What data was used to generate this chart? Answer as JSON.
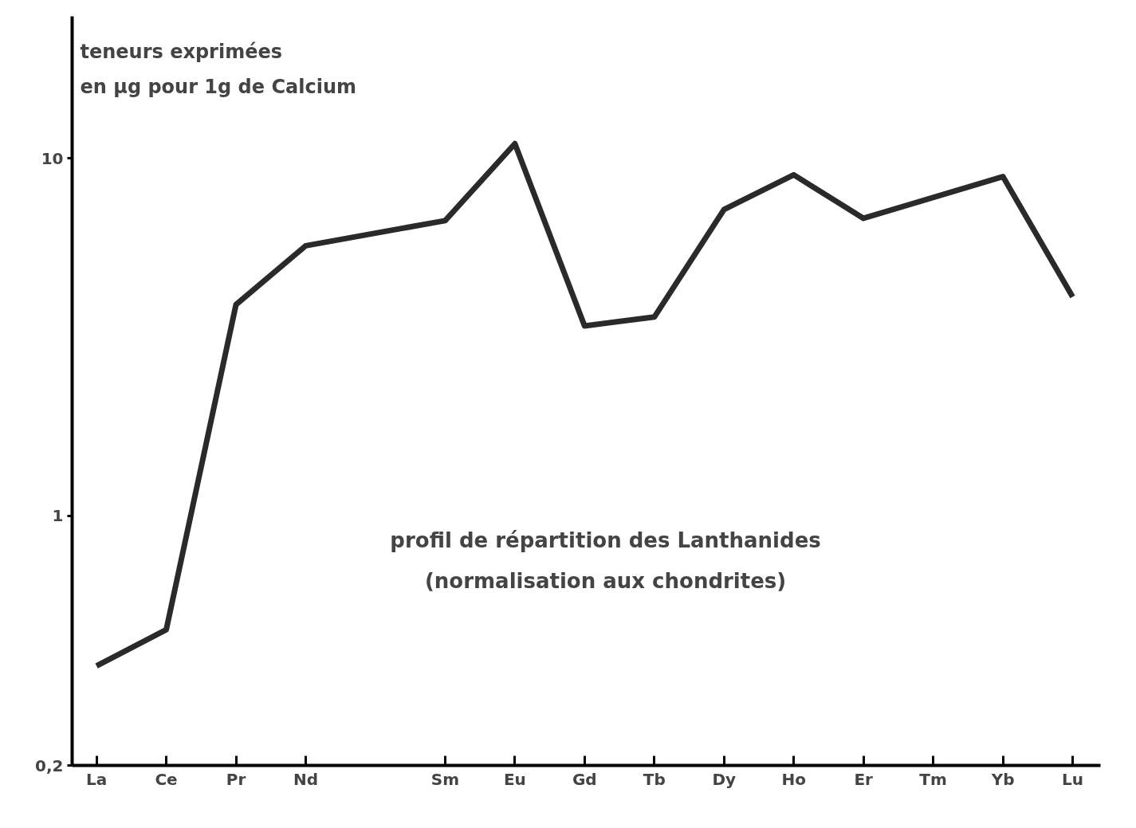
{
  "chart_data": {
    "type": "line",
    "title": "profil de répartition des Lanthanides\n(normalisation aux chondrites)",
    "ylabel": "teneurs exprimées\nen µg pour 1g de Calcium",
    "categories": [
      "La",
      "Ce",
      "Pr",
      "Nd",
      null,
      "Sm",
      "Eu",
      "Gd",
      "Tb",
      "Dy",
      "Ho",
      "Er",
      "Tm",
      "Yb",
      "Lu"
    ],
    "series": [
      {
        "color": "#2a2a2a",
        "values": [
          0.38,
          0.48,
          3.9,
          5.7,
          null,
          6.7,
          11,
          3.4,
          3.6,
          7.2,
          9.0,
          6.8,
          null,
          8.9,
          4.1
        ]
      }
    ],
    "log": true,
    "ylim": [
      0.2,
      25
    ],
    "yticks": [
      {
        "value": 0.2,
        "label": "0,2"
      },
      1,
      10
    ],
    "grid": false
  }
}
